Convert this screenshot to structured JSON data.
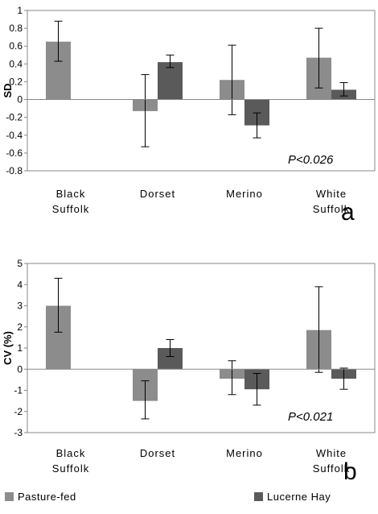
{
  "colors": {
    "pasture": "#8c8c8c",
    "lucerne": "#5a5a5a",
    "axis": "#888888",
    "error": "#000000"
  },
  "legend": [
    {
      "label": "Pasture-fed",
      "color": "#8c8c8c"
    },
    {
      "label": "Lucerne Hay",
      "color": "#5a5a5a"
    }
  ],
  "chart_data": [
    {
      "type": "bar",
      "panel_label": "a",
      "ylabel": "SD",
      "annotation": "P<0.026",
      "ylim": [
        -0.8,
        1
      ],
      "yticks": [
        -0.8,
        -0.6,
        -0.4,
        -0.2,
        0,
        0.2,
        0.4,
        0.6,
        0.8,
        1
      ],
      "ytick_labels": [
        "-0.8",
        "-0.6",
        "-0.4",
        "-0.2",
        "0",
        "0.2",
        "0.4",
        "0.6",
        "0.8",
        "1"
      ],
      "categories": [
        [
          "Black",
          "Suffolk"
        ],
        [
          "Dorset"
        ],
        [
          "Merino"
        ],
        [
          "White",
          "Suffolk"
        ]
      ],
      "series": [
        {
          "name": "Pasture-fed",
          "values": [
            0.65,
            -0.13,
            0.22,
            0.47
          ],
          "err_low": [
            0.43,
            -0.53,
            -0.17,
            0.13
          ],
          "err_high": [
            0.88,
            0.28,
            0.61,
            0.8
          ]
        },
        {
          "name": "Lucerne Hay",
          "values": [
            0.0,
            0.42,
            -0.29,
            0.11
          ],
          "err_low": [
            null,
            0.36,
            -0.43,
            0.04
          ],
          "err_high": [
            null,
            0.5,
            -0.15,
            0.19
          ]
        }
      ]
    },
    {
      "type": "bar",
      "panel_label": "b",
      "ylabel": "CV (%)",
      "annotation": "P<0.021",
      "ylim": [
        -3,
        5
      ],
      "yticks": [
        -3,
        -2,
        -1,
        0,
        1,
        2,
        3,
        4,
        5
      ],
      "ytick_labels": [
        "-3",
        "-2",
        "-1",
        "0",
        "1",
        "2",
        "3",
        "4",
        "5"
      ],
      "categories": [
        [
          "Black",
          "Suffolk"
        ],
        [
          "Dorset"
        ],
        [
          "Merino"
        ],
        [
          "White",
          "Suffolk"
        ]
      ],
      "series": [
        {
          "name": "Pasture-fed",
          "values": [
            3.0,
            -1.5,
            -0.45,
            1.85
          ],
          "err_low": [
            1.75,
            -2.35,
            -1.2,
            -0.15
          ],
          "err_high": [
            4.3,
            -0.55,
            0.4,
            3.9
          ]
        },
        {
          "name": "Lucerne Hay",
          "values": [
            0.0,
            1.0,
            -0.95,
            -0.45
          ],
          "err_low": [
            null,
            0.6,
            -1.7,
            -0.95
          ],
          "err_high": [
            null,
            1.4,
            -0.2,
            0.05
          ]
        }
      ]
    }
  ]
}
